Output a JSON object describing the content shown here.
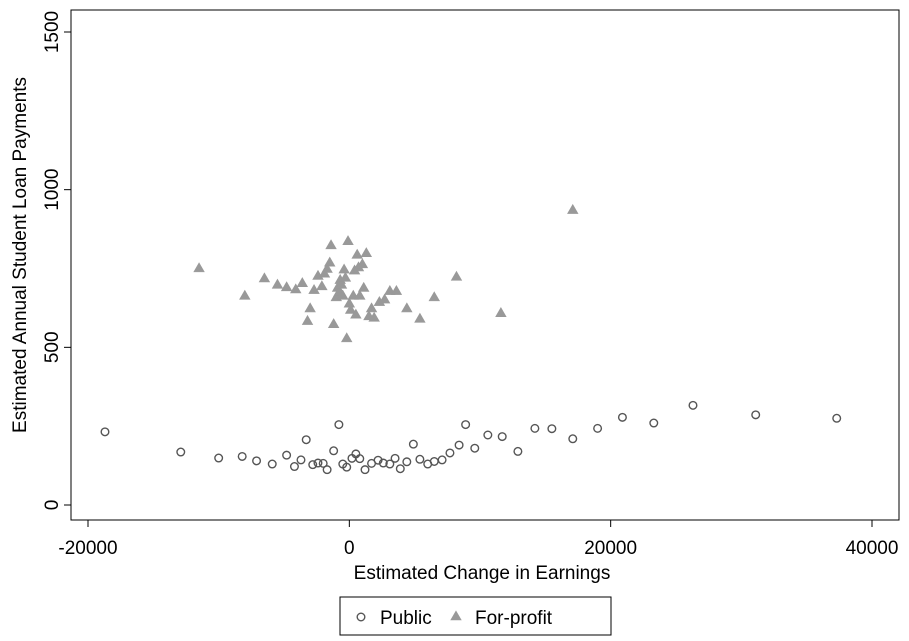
{
  "chart_data": {
    "type": "scatter",
    "title": "",
    "xlabel": "Estimated Change in Earnings",
    "ylabel": "Estimated Annual Student Loan Payments",
    "xlim": [
      -20000,
      40000
    ],
    "ylim": [
      0,
      1500
    ],
    "x_ticks": [
      -20000,
      0,
      20000,
      40000
    ],
    "x_tick_labels": [
      "-20000",
      "0",
      "20000",
      "40000"
    ],
    "y_ticks": [
      0,
      500,
      1000,
      1500
    ],
    "y_tick_labels": [
      "0",
      "500",
      "1000",
      "1500"
    ],
    "grid": false,
    "legend_position": "bottom",
    "series": [
      {
        "name": "Public",
        "marker": "hollow-circle",
        "color": "#555555",
        "points": [
          [
            -18700,
            232
          ],
          [
            -12900,
            168
          ],
          [
            -10000,
            149
          ],
          [
            -8200,
            154
          ],
          [
            -7100,
            140
          ],
          [
            -5900,
            130
          ],
          [
            -4800,
            158
          ],
          [
            -4200,
            122
          ],
          [
            -3700,
            143
          ],
          [
            -3300,
            207
          ],
          [
            -2800,
            128
          ],
          [
            -2400,
            133
          ],
          [
            -2000,
            132
          ],
          [
            -1700,
            112
          ],
          [
            -1200,
            172
          ],
          [
            -800,
            255
          ],
          [
            -500,
            130
          ],
          [
            -200,
            120
          ],
          [
            200,
            148
          ],
          [
            500,
            162
          ],
          [
            800,
            147
          ],
          [
            1200,
            112
          ],
          [
            1700,
            132
          ],
          [
            2200,
            142
          ],
          [
            2600,
            133
          ],
          [
            3100,
            130
          ],
          [
            3500,
            148
          ],
          [
            3900,
            115
          ],
          [
            4400,
            137
          ],
          [
            4900,
            193
          ],
          [
            5400,
            145
          ],
          [
            6000,
            130
          ],
          [
            6500,
            138
          ],
          [
            7100,
            143
          ],
          [
            7700,
            165
          ],
          [
            8400,
            190
          ],
          [
            8900,
            255
          ],
          [
            9600,
            180
          ],
          [
            10600,
            222
          ],
          [
            11700,
            217
          ],
          [
            12900,
            170
          ],
          [
            14200,
            243
          ],
          [
            15500,
            242
          ],
          [
            17100,
            210
          ],
          [
            19000,
            243
          ],
          [
            20900,
            278
          ],
          [
            23300,
            260
          ],
          [
            26300,
            316
          ],
          [
            31100,
            286
          ],
          [
            37300,
            275
          ]
        ]
      },
      {
        "name": "For-profit",
        "marker": "filled-triangle",
        "color": "#999999",
        "points": [
          [
            -11500,
            752
          ],
          [
            -8000,
            665
          ],
          [
            -6500,
            720
          ],
          [
            -5500,
            700
          ],
          [
            -4800,
            692
          ],
          [
            -4100,
            685
          ],
          [
            -3600,
            705
          ],
          [
            -3200,
            585
          ],
          [
            -3000,
            625
          ],
          [
            -2700,
            683
          ],
          [
            -2400,
            728
          ],
          [
            -2100,
            695
          ],
          [
            -1900,
            735
          ],
          [
            -1700,
            750
          ],
          [
            -1500,
            770
          ],
          [
            -1400,
            825
          ],
          [
            -1200,
            575
          ],
          [
            -1000,
            660
          ],
          [
            -900,
            690
          ],
          [
            -800,
            675
          ],
          [
            -700,
            715
          ],
          [
            -600,
            700
          ],
          [
            -500,
            665
          ],
          [
            -400,
            748
          ],
          [
            -300,
            722
          ],
          [
            -200,
            530
          ],
          [
            -100,
            838
          ],
          [
            0,
            640
          ],
          [
            100,
            620
          ],
          [
            300,
            665
          ],
          [
            400,
            745
          ],
          [
            500,
            605
          ],
          [
            600,
            795
          ],
          [
            700,
            755
          ],
          [
            800,
            665
          ],
          [
            1000,
            765
          ],
          [
            1100,
            690
          ],
          [
            1300,
            800
          ],
          [
            1500,
            600
          ],
          [
            1700,
            625
          ],
          [
            1900,
            595
          ],
          [
            2300,
            645
          ],
          [
            2700,
            653
          ],
          [
            3100,
            680
          ],
          [
            3600,
            680
          ],
          [
            4400,
            625
          ],
          [
            5400,
            592
          ],
          [
            6500,
            660
          ],
          [
            8200,
            725
          ],
          [
            11600,
            610
          ],
          [
            17100,
            937
          ]
        ]
      }
    ]
  }
}
